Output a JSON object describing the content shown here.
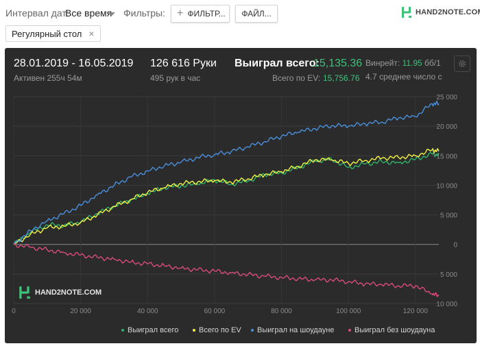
{
  "filters": {
    "date_interval_label": "Интервал дат:",
    "date_interval_value": "Все время",
    "filters_label": "Фильтры:",
    "filters_button": "ФИЛЬТР...",
    "files_button": "ФАЙЛ...",
    "table_chip": "Регулярный стол"
  },
  "logo": {
    "text": "HAND2NOTE.COM",
    "color": "#3ec27a"
  },
  "stats": {
    "date_range": "28.01.2019 - 16.05.2019",
    "active": "Активен 255ч 54м",
    "hands": "126 616 Руки",
    "hands_per_hour": "495 рук в час",
    "won_label": "Выиграл всего:",
    "won_value": "15,135.36",
    "ev_label": "Всего по EV:",
    "ev_value": "15,756.76",
    "winrate_label": "Винрейт:",
    "winrate_value": "11.95",
    "winrate_unit": "бб/1",
    "avg_text": "4.7 среднее число с"
  },
  "watermark": "HAND2NOTE.COM",
  "chart_data": {
    "type": "line",
    "xlim": [
      0,
      127000
    ],
    "ylim": [
      -10000,
      25000
    ],
    "xticks": [
      0,
      20000,
      40000,
      60000,
      80000,
      100000,
      120000
    ],
    "xtick_labels": [
      "0",
      "20 000",
      "40 000",
      "60 000",
      "80 000",
      "100 000",
      "120 000"
    ],
    "yticks": [
      25000,
      20000,
      15000,
      10000,
      5000,
      0,
      -5000,
      -10000
    ],
    "ytick_labels": [
      "25 000",
      "20 000",
      "15 000",
      "10 000",
      "5 000",
      "0",
      "5 000",
      "10 000"
    ],
    "grid": true,
    "legend_position": "bottom-right",
    "series": [
      {
        "name": "Выиграл всего",
        "color": "#2fb36a",
        "x": [
          0,
          5000,
          10000,
          15000,
          20000,
          25000,
          30000,
          35000,
          40000,
          45000,
          50000,
          55000,
          60000,
          65000,
          70000,
          75000,
          80000,
          85000,
          90000,
          95000,
          100000,
          105000,
          110000,
          115000,
          120000,
          125000,
          127000
        ],
        "y": [
          0,
          2000,
          3300,
          3200,
          3800,
          5200,
          6500,
          7500,
          8600,
          9600,
          9900,
          10200,
          10900,
          10200,
          10700,
          11800,
          12100,
          13000,
          14100,
          14400,
          13000,
          13600,
          14000,
          13800,
          14400,
          15300,
          15135
        ]
      },
      {
        "name": "Всего по EV",
        "color": "#f2f244",
        "x": [
          0,
          5000,
          10000,
          15000,
          20000,
          25000,
          30000,
          35000,
          40000,
          45000,
          50000,
          55000,
          60000,
          65000,
          70000,
          75000,
          80000,
          85000,
          90000,
          95000,
          100000,
          105000,
          110000,
          115000,
          120000,
          125000,
          127000
        ],
        "y": [
          0,
          1700,
          2800,
          3100,
          3700,
          5000,
          6400,
          7600,
          8800,
          9600,
          10300,
          10600,
          10800,
          10500,
          11100,
          11800,
          12300,
          13200,
          14300,
          14300,
          13700,
          14200,
          14600,
          14700,
          15000,
          16000,
          15757
        ]
      },
      {
        "name": "Выиграл на шоудауне",
        "color": "#4a8fdc",
        "x": [
          0,
          5000,
          10000,
          15000,
          20000,
          25000,
          30000,
          35000,
          40000,
          45000,
          50000,
          55000,
          60000,
          65000,
          70000,
          75000,
          80000,
          85000,
          90000,
          95000,
          100000,
          105000,
          110000,
          115000,
          120000,
          125000,
          127000
        ],
        "y": [
          0,
          2300,
          4000,
          5200,
          6600,
          8400,
          10000,
          11400,
          12400,
          13300,
          13900,
          14700,
          15200,
          15700,
          16500,
          17400,
          18300,
          19000,
          19600,
          20100,
          20000,
          20400,
          20700,
          21400,
          21600,
          23800,
          23800
        ]
      },
      {
        "name": "Выиграл без шоудауна",
        "color": "#d94b7b",
        "x": [
          0,
          5000,
          10000,
          15000,
          20000,
          25000,
          30000,
          35000,
          40000,
          45000,
          50000,
          55000,
          60000,
          65000,
          70000,
          75000,
          80000,
          85000,
          90000,
          95000,
          100000,
          105000,
          110000,
          115000,
          120000,
          125000,
          127000
        ],
        "y": [
          0,
          -500,
          -900,
          -1400,
          -1800,
          -2200,
          -2500,
          -3000,
          -3300,
          -3600,
          -4000,
          -4300,
          -4500,
          -4800,
          -5100,
          -5400,
          -5600,
          -5800,
          -6000,
          -6000,
          -6300,
          -6700,
          -6800,
          -7000,
          -7000,
          -8400,
          -8700
        ]
      }
    ]
  }
}
